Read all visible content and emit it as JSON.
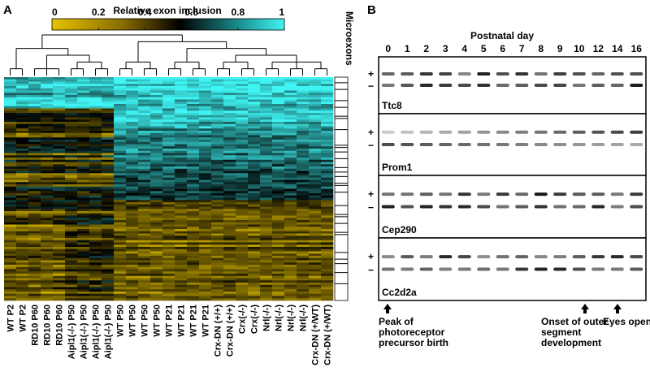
{
  "panel_a": {
    "label": "A",
    "colorbar": {
      "title": "Relative exon inclusion",
      "ticks": [
        0,
        0.2,
        0.4,
        0.6,
        0.8,
        1
      ]
    },
    "side_label": "Microexons",
    "samples": [
      "WT P2",
      "WT P2",
      "RD10 P60",
      "RD10 P60",
      "RD10 P60",
      "Aipl1(-/-) P50",
      "Aipl1(-/-) P50",
      "Aipl1(-/-) P50",
      "Aipl1(-/-) P50",
      "WT P50",
      "WT P50",
      "WT P50",
      "WT P50",
      "WT P21",
      "WT P21",
      "WT P21",
      "WT P21",
      "Crx-DN (+/+)",
      "Crx-DN (+/+)",
      "Crx(-/-)",
      "Crx(-/-)",
      "Nrl(-/-)",
      "Nrl(-/-)",
      "Nrl(-/-)",
      "Nrl(-/-)",
      "Crx-DN (+/WT)",
      "Crx-DN (+/WT)"
    ]
  },
  "panel_b": {
    "label": "B",
    "x_title": "Postnatal day",
    "days": [
      0,
      1,
      2,
      3,
      4,
      5,
      6,
      7,
      8,
      9,
      10,
      12,
      14,
      16
    ],
    "genes": [
      "Ttc8",
      "Prom1",
      "Cep290",
      "Cc2d2a"
    ],
    "plus": "+",
    "minus": "−",
    "annotations": [
      [
        "Peak of",
        "photoreceptor",
        "precursor birth"
      ],
      [
        "Onset of outer",
        "segment",
        "development"
      ],
      [
        "Eyes open"
      ]
    ]
  }
}
